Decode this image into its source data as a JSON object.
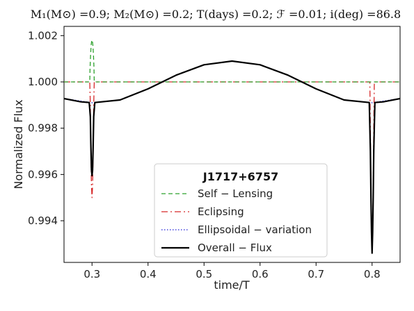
{
  "chart_data": {
    "type": "line",
    "title": "M₁(M⊙) =0.9;  M₂(M⊙) =0.2;  T(days) =0.2;  ℱ =0.01;  i(deg) =86.8",
    "xlabel": "time/T",
    "ylabel": "Normalized Flux",
    "xlim": [
      0.25,
      0.85
    ],
    "ylim": [
      0.9922,
      1.0024
    ],
    "xticks": [
      0.3,
      0.4,
      0.5,
      0.6,
      0.7,
      0.8
    ],
    "xtick_labels": [
      "0.3",
      "0.4",
      "0.5",
      "0.6",
      "0.7",
      "0.8"
    ],
    "yticks": [
      0.994,
      0.996,
      0.998,
      1.0,
      1.002
    ],
    "ytick_labels": [
      "0.994",
      "0.996",
      "0.998",
      "1.000",
      "1.002"
    ],
    "grid": false,
    "legend": {
      "title": "J1717+6757",
      "placement": "lower-center"
    },
    "series": [
      {
        "name": "Self − Lensing",
        "color": "#2ca02c",
        "style": "dashed",
        "points": [
          [
            0.25,
            1.0
          ],
          [
            0.296,
            1.0
          ],
          [
            0.2965,
            1.0006
          ],
          [
            0.2975,
            1.0012
          ],
          [
            0.2985,
            1.0016
          ],
          [
            0.2995,
            1.0018
          ],
          [
            0.3005,
            1.0018
          ],
          [
            0.3015,
            1.0016
          ],
          [
            0.3025,
            1.0012
          ],
          [
            0.3035,
            1.0006
          ],
          [
            0.304,
            1.0
          ],
          [
            0.796,
            1.0
          ],
          [
            0.798,
            1.0
          ],
          [
            0.799,
            1.0
          ],
          [
            0.85,
            1.0
          ]
        ]
      },
      {
        "name": "Eclipsing",
        "color": "#d62728",
        "style": "dashdot",
        "points": [
          [
            0.25,
            1.0
          ],
          [
            0.296,
            1.0
          ],
          [
            0.297,
            0.999
          ],
          [
            0.298,
            0.997
          ],
          [
            0.299,
            0.9955
          ],
          [
            0.3,
            0.995
          ],
          [
            0.301,
            0.9955
          ],
          [
            0.302,
            0.997
          ],
          [
            0.303,
            0.999
          ],
          [
            0.304,
            1.0
          ],
          [
            0.796,
            1.0
          ],
          [
            0.797,
            0.998
          ],
          [
            0.798,
            0.9955
          ],
          [
            0.799,
            0.9935
          ],
          [
            0.8,
            0.9928
          ],
          [
            0.801,
            0.9935
          ],
          [
            0.802,
            0.9955
          ],
          [
            0.803,
            0.998
          ],
          [
            0.804,
            1.0
          ],
          [
            0.85,
            1.0
          ]
        ]
      },
      {
        "name": "Ellipsoidal − variation",
        "color": "#1f1fd6",
        "style": "dotted",
        "points": [
          [
            0.25,
            0.99928
          ],
          [
            0.3,
            0.9991
          ],
          [
            0.35,
            0.99922
          ],
          [
            0.4,
            0.9997
          ],
          [
            0.45,
            1.00029
          ],
          [
            0.5,
            1.00074
          ],
          [
            0.55,
            1.0009
          ],
          [
            0.6,
            1.00074
          ],
          [
            0.65,
            1.00029
          ],
          [
            0.7,
            0.9997
          ],
          [
            0.75,
            0.99922
          ],
          [
            0.8,
            0.9991
          ],
          [
            0.85,
            0.99928
          ]
        ]
      },
      {
        "name": "Overall − Flux",
        "color": "#000000",
        "style": "solid",
        "points": [
          [
            0.25,
            0.99928
          ],
          [
            0.28,
            0.99914
          ],
          [
            0.295,
            0.99911
          ],
          [
            0.297,
            0.9985
          ],
          [
            0.298,
            0.9972
          ],
          [
            0.299,
            0.9962
          ],
          [
            0.3,
            0.99595
          ],
          [
            0.301,
            0.9962
          ],
          [
            0.302,
            0.9972
          ],
          [
            0.303,
            0.9985
          ],
          [
            0.305,
            0.99911
          ],
          [
            0.35,
            0.99922
          ],
          [
            0.4,
            0.9997
          ],
          [
            0.45,
            1.00029
          ],
          [
            0.5,
            1.00074
          ],
          [
            0.55,
            1.0009
          ],
          [
            0.6,
            1.00074
          ],
          [
            0.65,
            1.00029
          ],
          [
            0.7,
            0.9997
          ],
          [
            0.75,
            0.99922
          ],
          [
            0.795,
            0.99911
          ],
          [
            0.797,
            0.997
          ],
          [
            0.798,
            0.995
          ],
          [
            0.799,
            0.9935
          ],
          [
            0.8,
            0.9926
          ],
          [
            0.801,
            0.9935
          ],
          [
            0.802,
            0.995
          ],
          [
            0.803,
            0.997
          ],
          [
            0.805,
            0.99911
          ],
          [
            0.82,
            0.99914
          ],
          [
            0.85,
            0.99928
          ]
        ]
      }
    ]
  }
}
